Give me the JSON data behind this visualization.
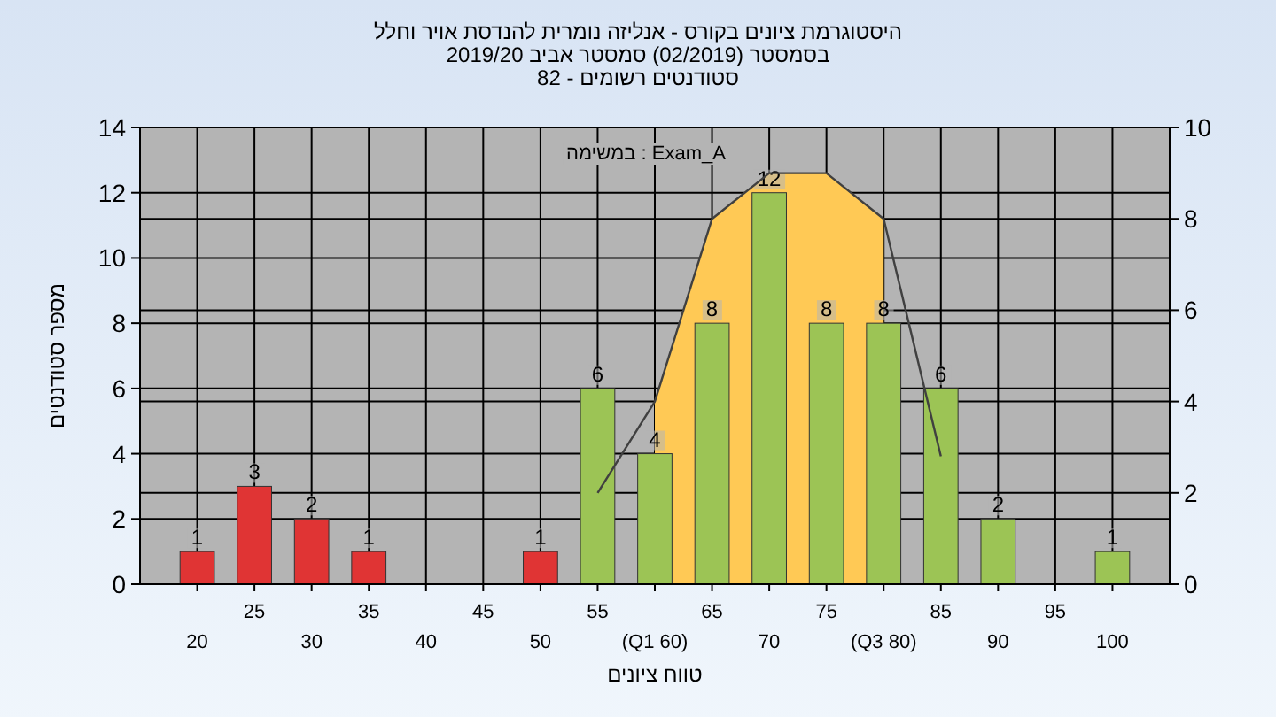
{
  "chart_data": {
    "type": "bar",
    "title": "היסטוגרמת ציונים בקורס - אנליזה נומרית להנדסת אויר וחלל",
    "subtitle": "בסמסטר  (02/2019)  סמסטר אביב 2019/20\nסטודנטים רשומים - 82",
    "xlabel": "טווח ציונים",
    "ylabel": "מספר סטודנטים",
    "annotations": [
      "במשימה : Exam_A"
    ],
    "categories": [
      "20",
      "25",
      "30",
      "35",
      "40",
      "45",
      "50",
      "55",
      "(Q1 60)",
      "65",
      "70",
      "75",
      "(Q3 80)",
      "85",
      "90",
      "95",
      "100"
    ],
    "series": [
      {
        "type": "area",
        "axis": "y2",
        "color": "#ffc955",
        "values": [
          null,
          null,
          null,
          null,
          null,
          null,
          null,
          null,
          4,
          8,
          9,
          9,
          8,
          null,
          null,
          null,
          null
        ]
      },
      {
        "colors": [
          "#e03434",
          "#e03434",
          "#e03434",
          "#e03434",
          null,
          null,
          "#e03434",
          "#9cc455",
          "#9cc455",
          "#9cc455",
          "#9cc455",
          "#9cc455",
          "#9cc455",
          "#9cc455",
          "#9cc455",
          null,
          "#9cc455"
        ],
        "values": [
          1,
          3,
          2,
          1,
          null,
          null,
          1,
          6,
          4,
          8,
          12,
          8,
          8,
          6,
          2,
          null,
          1
        ],
        "value_labels": [
          "1",
          "3",
          "2",
          "1",
          null,
          null,
          "1",
          "6",
          "4",
          "8",
          "12",
          "8",
          "8",
          "6",
          "2",
          null,
          "1"
        ]
      },
      {
        "type": "line",
        "axis": "y2",
        "color": "#404040",
        "values": [
          null,
          null,
          null,
          null,
          null,
          null,
          null,
          2,
          4,
          8,
          9,
          9,
          8,
          2.8,
          null,
          null,
          null
        ]
      }
    ],
    "ylim": [
      0,
      14
    ],
    "yticks": [
      0,
      2,
      4,
      6,
      8,
      10,
      12,
      14
    ],
    "y2lim": [
      0,
      10
    ],
    "y2ticks": [
      0,
      2,
      4,
      6,
      8,
      10
    ],
    "grid": true
  }
}
